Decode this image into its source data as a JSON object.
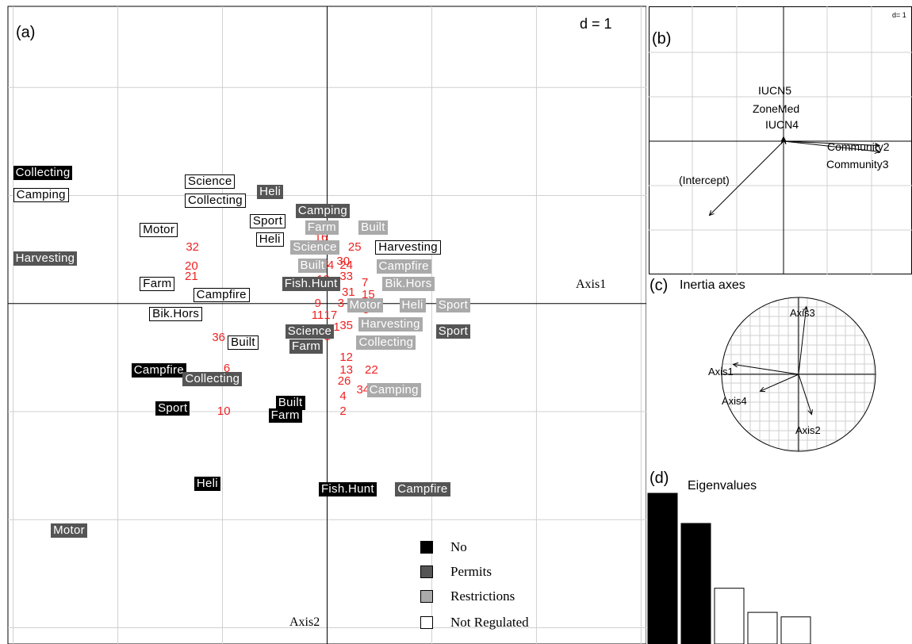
{
  "panel_a": {
    "letter": "(a)",
    "scale": "d = 1",
    "axis1_label": "Axis1",
    "axis2_label": "Axis2",
    "legend": [
      {
        "label": "No",
        "color": "#000000"
      },
      {
        "label": "Permits",
        "color": "#555555"
      },
      {
        "label": "Restrictions",
        "color": "#aaaaaa"
      },
      {
        "label": "Not Regulated",
        "color": "#ffffff"
      }
    ]
  },
  "panel_b": {
    "letter": "(b)",
    "scale": "d= 1",
    "labels": [
      "IUCN5",
      "ZoneMed",
      "IUCN4",
      "Community2",
      "Community3",
      "(Intercept)"
    ]
  },
  "panel_c": {
    "letter": "(c)",
    "title": "Inertia axes",
    "axes": [
      "Axis3",
      "Axis1",
      "Axis4",
      "Axis2"
    ]
  },
  "panel_d": {
    "letter": "(d)",
    "title": "Eigenvalues"
  },
  "chart_data": [
    {
      "type": "scatter",
      "panel": "a",
      "xlabel": "Axis1",
      "ylabel": "Axis2",
      "xlim": [
        -3.05,
        3.05
      ],
      "ylim": [
        -3.15,
        2.75
      ],
      "grid": true,
      "grid_unit": 1,
      "legend_position": "bottom-right",
      "categories": [
        {
          "label": "Collecting",
          "cat": "no",
          "x": -3.0,
          "y": 1.21
        },
        {
          "label": "Camping",
          "cat": "notreg",
          "x": -3.0,
          "y": 1.0
        },
        {
          "label": "Harvesting",
          "cat": "permits",
          "x": -3.0,
          "y": 0.42
        },
        {
          "label": "Science",
          "cat": "notreg",
          "x": -1.36,
          "y": 1.13
        },
        {
          "label": "Collecting",
          "cat": "notreg",
          "x": -1.36,
          "y": 0.95
        },
        {
          "label": "Heli",
          "cat": "permits",
          "x": -0.67,
          "y": 1.03
        },
        {
          "label": "Sport",
          "cat": "notreg",
          "x": -0.74,
          "y": 0.76
        },
        {
          "label": "Camping",
          "cat": "permits",
          "x": -0.3,
          "y": 0.86
        },
        {
          "label": "Motor",
          "cat": "notreg",
          "x": -1.79,
          "y": 0.68
        },
        {
          "label": "Heli",
          "cat": "notreg",
          "x": -0.68,
          "y": 0.59
        },
        {
          "label": "Farm",
          "cat": "restrictions",
          "x": -0.21,
          "y": 0.7
        },
        {
          "label": "Built",
          "cat": "restrictions",
          "x": 0.3,
          "y": 0.7
        },
        {
          "label": "Harvesting",
          "cat": "notreg",
          "x": 0.46,
          "y": 0.52
        },
        {
          "label": "Science",
          "cat": "restrictions",
          "x": -0.35,
          "y": 0.52
        },
        {
          "label": "Built",
          "cat": "restrictions",
          "x": -0.28,
          "y": 0.35
        },
        {
          "label": "Campfire",
          "cat": "restrictions",
          "x": 0.47,
          "y": 0.34
        },
        {
          "label": "Fish.Hunt",
          "cat": "permits",
          "x": -0.43,
          "y": 0.18
        },
        {
          "label": "Bik.Hors",
          "cat": "restrictions",
          "x": 0.53,
          "y": 0.18
        },
        {
          "label": "Farm",
          "cat": "notreg",
          "x": -1.79,
          "y": 0.18
        },
        {
          "label": "Campfire",
          "cat": "notreg",
          "x": -1.28,
          "y": 0.08
        },
        {
          "label": "Motor",
          "cat": "restrictions",
          "x": 0.19,
          "y": -0.02
        },
        {
          "label": "Heli",
          "cat": "restrictions",
          "x": 0.69,
          "y": -0.02
        },
        {
          "label": "Sport",
          "cat": "restrictions",
          "x": 1.04,
          "y": -0.02
        },
        {
          "label": "Bik.Hors",
          "cat": "notreg",
          "x": -1.7,
          "y": -0.1
        },
        {
          "label": "Harvesting",
          "cat": "restrictions",
          "x": 0.3,
          "y": -0.19
        },
        {
          "label": "Sport",
          "cat": "permits",
          "x": 1.04,
          "y": -0.26
        },
        {
          "label": "Science",
          "cat": "permits",
          "x": -0.4,
          "y": -0.26
        },
        {
          "label": "Collecting",
          "cat": "restrictions",
          "x": 0.28,
          "y": -0.36
        },
        {
          "label": "Built",
          "cat": "notreg",
          "x": -0.95,
          "y": -0.36
        },
        {
          "label": "Farm",
          "cat": "permits",
          "x": -0.36,
          "y": -0.4
        },
        {
          "label": "Campfire",
          "cat": "no",
          "x": -1.87,
          "y": -0.62
        },
        {
          "label": "Collecting",
          "cat": "permits",
          "x": -1.38,
          "y": -0.7
        },
        {
          "label": "Camping",
          "cat": "restrictions",
          "x": 0.38,
          "y": -0.8
        },
        {
          "label": "Built",
          "cat": "no",
          "x": -0.49,
          "y": -0.92
        },
        {
          "label": "Sport",
          "cat": "no",
          "x": -1.64,
          "y": -0.97
        },
        {
          "label": "Farm",
          "cat": "no",
          "x": -0.56,
          "y": -1.04
        },
        {
          "label": "Heli",
          "cat": "no",
          "x": -1.27,
          "y": -1.67
        },
        {
          "label": "Fish.Hunt",
          "cat": "no",
          "x": -0.08,
          "y": -1.72
        },
        {
          "label": "Campfire",
          "cat": "permits",
          "x": 0.65,
          "y": -1.72
        },
        {
          "label": "Motor",
          "cat": "permits",
          "x": -2.64,
          "y": -2.1
        }
      ],
      "points": [
        {
          "id": "32",
          "x": -1.35,
          "y": 0.52
        },
        {
          "id": "20",
          "x": -1.36,
          "y": 0.34
        },
        {
          "id": "21",
          "x": -1.36,
          "y": 0.25
        },
        {
          "id": "16",
          "x": -0.12,
          "y": 0.61
        },
        {
          "id": "23",
          "x": -0.02,
          "y": 0.52
        },
        {
          "id": "25",
          "x": 0.2,
          "y": 0.52
        },
        {
          "id": "30",
          "x": 0.09,
          "y": 0.39
        },
        {
          "id": "18",
          "x": -0.11,
          "y": 0.36
        },
        {
          "id": "14",
          "x": -0.06,
          "y": 0.35
        },
        {
          "id": "24",
          "x": 0.12,
          "y": 0.35
        },
        {
          "id": "33",
          "x": 0.12,
          "y": 0.25
        },
        {
          "id": "19",
          "x": -0.1,
          "y": 0.22
        },
        {
          "id": "7",
          "x": 0.33,
          "y": 0.19
        },
        {
          "id": "31",
          "x": 0.14,
          "y": 0.1
        },
        {
          "id": "15",
          "x": 0.33,
          "y": 0.08
        },
        {
          "id": "9",
          "x": -0.12,
          "y": -0.0
        },
        {
          "id": "3",
          "x": 0.1,
          "y": -0.0
        },
        {
          "id": "11",
          "x": -0.15,
          "y": -0.11
        },
        {
          "id": "17",
          "x": -0.03,
          "y": -0.11
        },
        {
          "id": "5",
          "x": 0.34,
          "y": -0.06
        },
        {
          "id": "35",
          "x": 0.12,
          "y": -0.21
        },
        {
          "id": "1",
          "x": 0.06,
          "y": -0.22
        },
        {
          "id": "8",
          "x": -0.03,
          "y": -0.31
        },
        {
          "id": "36",
          "x": -1.1,
          "y": -0.32
        },
        {
          "id": "6",
          "x": -0.99,
          "y": -0.6
        },
        {
          "id": "12",
          "x": 0.12,
          "y": -0.5
        },
        {
          "id": "13",
          "x": 0.12,
          "y": -0.62
        },
        {
          "id": "22",
          "x": 0.36,
          "y": -0.62
        },
        {
          "id": "26",
          "x": 0.1,
          "y": -0.72
        },
        {
          "id": "34",
          "x": 0.28,
          "y": -0.8
        },
        {
          "id": "4",
          "x": 0.12,
          "y": -0.86
        },
        {
          "id": "2",
          "x": 0.12,
          "y": -1.0
        },
        {
          "id": "10",
          "x": -1.05,
          "y": -1.0
        }
      ]
    },
    {
      "type": "scatter",
      "panel": "b",
      "title": "",
      "vectors": [
        {
          "label": "IUCN5",
          "x": 0.0,
          "y": 0.05
        },
        {
          "label": "ZoneMed",
          "x": 0.0,
          "y": 0.03
        },
        {
          "label": "IUCN4",
          "x": 0.0,
          "y": 0.02
        },
        {
          "label": "Community2",
          "x": 1.1,
          "y": -0.05
        },
        {
          "label": "Community3",
          "x": 1.1,
          "y": -0.12
        },
        {
          "label": "(Intercept)",
          "x": -0.85,
          "y": -0.85
        }
      ]
    },
    {
      "type": "scatter",
      "panel": "c",
      "title": "Inertia axes",
      "vectors": [
        {
          "label": "Axis3",
          "x": 0.1,
          "y": 0.88
        },
        {
          "label": "Axis1",
          "x": -0.85,
          "y": 0.13
        },
        {
          "label": "Axis4",
          "x": -0.5,
          "y": -0.22
        },
        {
          "label": "Axis2",
          "x": 0.17,
          "y": -0.52
        }
      ]
    },
    {
      "type": "bar",
      "panel": "d",
      "title": "Eigenvalues",
      "values": [
        1.0,
        0.8,
        0.37,
        0.21,
        0.18
      ],
      "bar_colors": [
        "#000000",
        "#000000",
        "#ffffff",
        "#ffffff",
        "#ffffff"
      ]
    }
  ]
}
